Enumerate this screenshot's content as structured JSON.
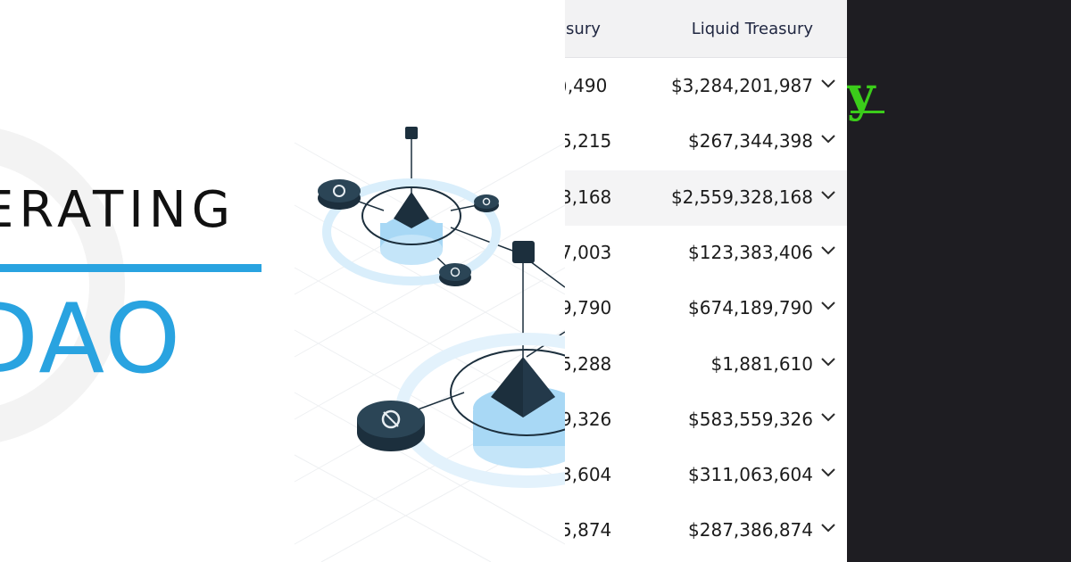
{
  "hero": {
    "line1": "ERATING",
    "line2": "DAO",
    "accent_color": "#29a3e0"
  },
  "table": {
    "headers": {
      "treasury": "asury",
      "liquid_treasury": "Liquid Treasury"
    },
    "rows": [
      {
        "treasury": ",490",
        "treasury_prefix": ")",
        "liquid": "$3,284,201,987"
      },
      {
        "treasury": ",215",
        "treasury_prefix": "5",
        "liquid": "$267,344,398"
      },
      {
        "treasury": ",168",
        "treasury_prefix": "3",
        "liquid": "$2,559,328,168",
        "highlighted": true
      },
      {
        "treasury": ",003",
        "treasury_prefix": "7",
        "liquid": "$123,383,406"
      },
      {
        "treasury": ",790",
        "treasury_prefix": "9",
        "liquid": "$674,189,790"
      },
      {
        "treasury": ",288",
        "treasury_prefix": "5",
        "liquid": "$1,881,610"
      },
      {
        "treasury": ",326",
        "treasury_prefix": "9",
        "liquid": "$583,559,326"
      },
      {
        "treasury": ",604",
        "treasury_prefix": "3",
        "liquid": "$311,063,604"
      },
      {
        "treasury": ",874",
        "treasury_prefix": "5",
        "liquid": "$287,386,874"
      }
    ]
  },
  "dark_panel": {
    "brand_glyph": "y",
    "brand_color": "#3bcc1a"
  }
}
